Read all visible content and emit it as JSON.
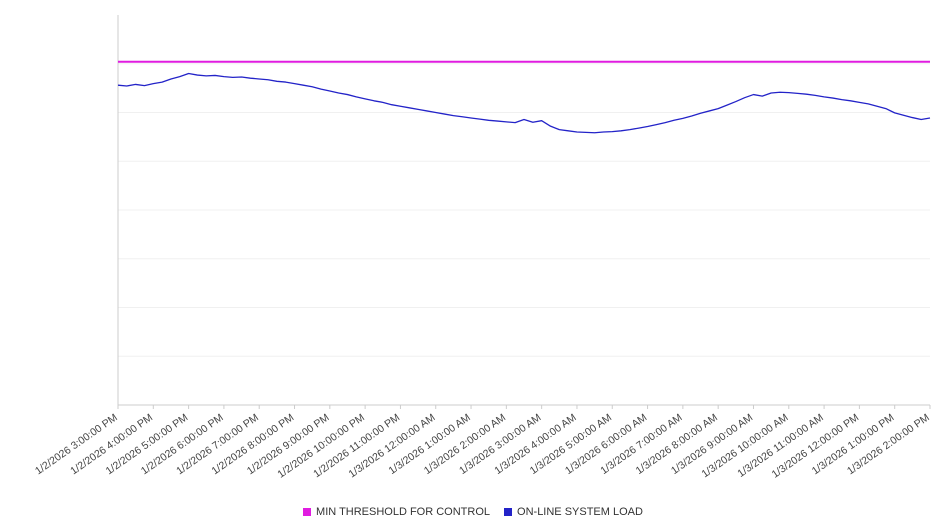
{
  "chart_data": {
    "type": "line",
    "title": "",
    "xlabel": "",
    "ylabel": "",
    "ylim": [
      0,
      100
    ],
    "y_axis_labels_visible": false,
    "gridline_divisions": 8,
    "grid_color": "#f0f0f0",
    "axis_color": "#cccccc",
    "label_color": "#444444",
    "legend_position": "bottom",
    "x_labels": [
      "1/2/2026 3:00:00 PM",
      "1/2/2026 4:00:00 PM",
      "1/2/2026 5:00:00 PM",
      "1/2/2026 6:00:00 PM",
      "1/2/2026 7:00:00 PM",
      "1/2/2026 8:00:00 PM",
      "1/2/2026 9:00:00 PM",
      "1/2/2026 10:00:00 PM",
      "1/2/2026 11:00:00 PM",
      "1/3/2026 12:00:00 AM",
      "1/3/2026 1:00:00 AM",
      "1/3/2026 2:00:00 AM",
      "1/3/2026 3:00:00 AM",
      "1/3/2026 4:00:00 AM",
      "1/3/2026 5:00:00 AM",
      "1/3/2026 6:00:00 AM",
      "1/3/2026 7:00:00 AM",
      "1/3/2026 8:00:00 AM",
      "1/3/2026 9:00:00 AM",
      "1/3/2026 10:00:00 AM",
      "1/3/2026 11:00:00 AM",
      "1/3/2026 12:00:00 PM",
      "1/3/2026 1:00:00 PM",
      "1/3/2026 2:00:00 PM"
    ],
    "series": [
      {
        "name": "MIN THRESHOLD FOR CONTROL",
        "color": "#e01ce0",
        "style": "threshold",
        "value": 88
      },
      {
        "name": "ON-LINE SYSTEM LOAD",
        "color": "#2323c8",
        "style": "line",
        "values": [
          82.0,
          81.8,
          82.2,
          81.9,
          82.4,
          82.8,
          83.6,
          84.2,
          85.0,
          84.6,
          84.4,
          84.5,
          84.2,
          84.0,
          84.1,
          83.8,
          83.6,
          83.4,
          83.0,
          82.8,
          82.4,
          82.0,
          81.6,
          81.0,
          80.5,
          80.0,
          79.6,
          79.0,
          78.5,
          78.0,
          77.6,
          77.0,
          76.6,
          76.2,
          75.8,
          75.4,
          75.0,
          74.6,
          74.2,
          73.9,
          73.6,
          73.3,
          73.0,
          72.8,
          72.6,
          72.4,
          73.2,
          72.5,
          72.9,
          71.5,
          70.6,
          70.3,
          70.0,
          69.9,
          69.8,
          70.0,
          70.1,
          70.3,
          70.6,
          71.0,
          71.4,
          71.9,
          72.4,
          73.0,
          73.5,
          74.1,
          74.8,
          75.4,
          76.0,
          76.9,
          77.8,
          78.8,
          79.6,
          79.2,
          80.0,
          80.2,
          80.1,
          79.9,
          79.7,
          79.4,
          79.0,
          78.7,
          78.3,
          78.0,
          77.6,
          77.2,
          76.6,
          76.0,
          74.9,
          74.3,
          73.7,
          73.2,
          73.6
        ]
      }
    ],
    "legend": {
      "items": [
        {
          "label": "MIN THRESHOLD FOR CONTROL",
          "color": "#e01ce0"
        },
        {
          "label": "ON-LINE SYSTEM LOAD",
          "color": "#2323c8"
        }
      ]
    }
  }
}
